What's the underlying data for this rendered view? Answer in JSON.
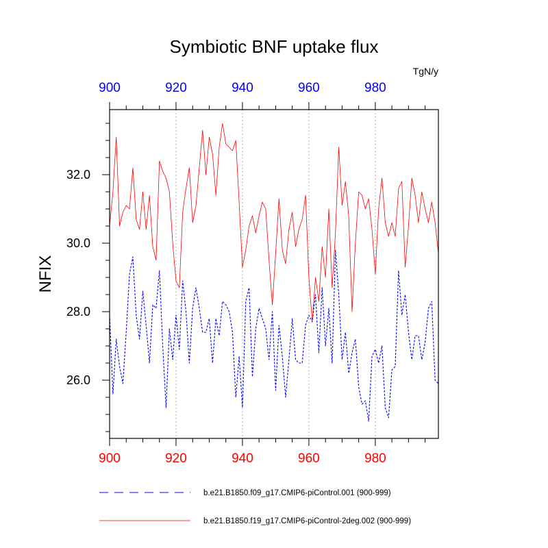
{
  "chart_data": {
    "type": "line",
    "title": "Symbiotic BNF uptake flux",
    "units": "TgN/y",
    "ylabel": "NFIX",
    "xlabel": "",
    "xlim": [
      900,
      999
    ],
    "ylim": [
      24.3,
      33.9
    ],
    "x_ticks": [
      900,
      920,
      940,
      960,
      980
    ],
    "x_tick_labels": [
      "900",
      "920",
      "940",
      "960",
      "980"
    ],
    "top_x_tick_labels": [
      "900",
      "920",
      "940",
      "960",
      "980"
    ],
    "y_ticks": [
      26.0,
      28.0,
      30.0,
      32.0
    ],
    "y_tick_labels": [
      "26.0",
      "28.0",
      "30.0",
      "32.0"
    ],
    "x_gridlines": [
      920,
      940,
      960,
      980
    ],
    "colors": {
      "bottom_axis_labels": "#ff0000",
      "top_axis_labels": "#0000ff",
      "gridline": "#b0b0b0",
      "frame": "#000000"
    },
    "x": [
      900,
      901,
      902,
      903,
      904,
      905,
      906,
      907,
      908,
      909,
      910,
      911,
      912,
      913,
      914,
      915,
      916,
      917,
      918,
      919,
      920,
      921,
      922,
      923,
      924,
      925,
      926,
      927,
      928,
      929,
      930,
      931,
      932,
      933,
      934,
      935,
      936,
      937,
      938,
      939,
      940,
      941,
      942,
      943,
      944,
      945,
      946,
      947,
      948,
      949,
      950,
      951,
      952,
      953,
      954,
      955,
      956,
      957,
      958,
      959,
      960,
      961,
      962,
      963,
      964,
      965,
      966,
      967,
      968,
      969,
      970,
      971,
      972,
      973,
      974,
      975,
      976,
      977,
      978,
      979,
      980,
      981,
      982,
      983,
      984,
      985,
      986,
      987,
      988,
      989,
      990,
      991,
      992,
      993,
      994,
      995,
      996,
      997,
      998,
      999
    ],
    "series": [
      {
        "name": "b.e21.B1850.f09_g17.CMIP6-piControl.001 (900-999)",
        "color": "#0000ff",
        "dash": "dashed",
        "values": [
          27.9,
          25.6,
          27.2,
          26.4,
          25.9,
          27.4,
          29.1,
          29.6,
          27.9,
          27.2,
          28.6,
          27.6,
          26.5,
          28.2,
          28.1,
          29.2,
          27.0,
          25.2,
          27.5,
          26.6,
          27.9,
          26.9,
          28.9,
          28.0,
          26.5,
          28.1,
          28.7,
          28.1,
          27.4,
          27.4,
          27.8,
          26.5,
          27.8,
          27.3,
          28.3,
          28.2,
          28.0,
          27.4,
          25.5,
          26.7,
          25.2,
          28.3,
          28.7,
          26.1,
          27.5,
          28.1,
          27.8,
          27.5,
          26.6,
          28.0,
          25.7,
          27.6,
          26.7,
          25.5,
          26.6,
          27.8,
          26.6,
          26.5,
          26.5,
          27.6,
          27.9,
          27.7,
          28.5,
          26.8,
          28.7,
          27.0,
          28.1,
          26.5,
          29.8,
          28.5,
          26.6,
          27.4,
          26.2,
          26.8,
          27.2,
          25.8,
          25.3,
          25.4,
          24.8,
          26.7,
          26.9,
          26.5,
          27.0,
          25.2,
          24.9,
          26.3,
          26.4,
          29.2,
          27.9,
          28.5,
          27.4,
          26.6,
          27.3,
          27.3,
          26.6,
          27.1,
          28.1,
          28.3,
          26.0,
          25.9
        ]
      },
      {
        "name": "b.e21.B1850.f19_g17.CMIP6-piControl-2deg.002 (900-999)",
        "color": "#ff0000",
        "dash": "solid",
        "values": [
          30.5,
          31.5,
          33.1,
          30.5,
          30.9,
          31.1,
          31.0,
          32.2,
          30.7,
          30.4,
          31.5,
          30.4,
          31.4,
          29.9,
          29.5,
          32.4,
          32.1,
          31.9,
          31.5,
          30.0,
          28.9,
          28.7,
          30.9,
          31.6,
          32.2,
          30.6,
          31.1,
          32.2,
          33.3,
          32.0,
          33.1,
          32.6,
          31.4,
          32.8,
          33.5,
          32.9,
          32.8,
          32.7,
          33.0,
          31.2,
          29.3,
          29.8,
          30.5,
          30.8,
          30.3,
          30.8,
          31.2,
          31.0,
          29.5,
          28.2,
          29.7,
          31.3,
          29.8,
          29.4,
          30.4,
          30.9,
          29.9,
          30.4,
          30.7,
          31.4,
          29.0,
          27.7,
          29.0,
          28.3,
          29.9,
          29.0,
          31.0,
          28.7,
          30.3,
          32.8,
          31.1,
          31.8,
          30.8,
          28.0,
          30.0,
          31.5,
          31.4,
          31.0,
          31.3,
          30.4,
          29.1,
          31.0,
          31.9,
          30.6,
          30.2,
          30.6,
          30.2,
          31.6,
          31.8,
          29.3,
          30.5,
          31.9,
          31.4,
          30.6,
          31.5,
          31.0,
          30.6,
          31.2,
          30.6,
          29.7
        ]
      }
    ]
  }
}
